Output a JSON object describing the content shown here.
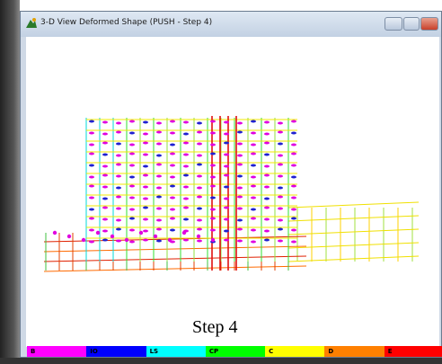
{
  "window": {
    "title": "3-D View  Deformed Shape (PUSH - Step 4)"
  },
  "view": {
    "caption": "Step 4"
  },
  "legend": [
    {
      "label": "B",
      "color": "#ff00ff"
    },
    {
      "label": "IO",
      "color": "#0000ff"
    },
    {
      "label": "LS",
      "color": "#00ffff"
    },
    {
      "label": "CP",
      "color": "#00ff00"
    },
    {
      "label": "C",
      "color": "#ffff00"
    },
    {
      "label": "D",
      "color": "#ff8000"
    },
    {
      "label": "E",
      "color": "#ff0000"
    }
  ]
}
